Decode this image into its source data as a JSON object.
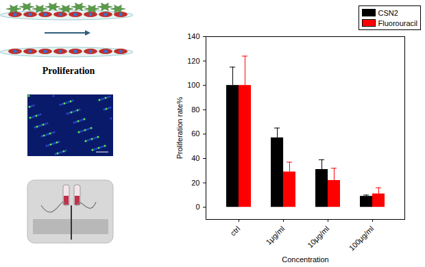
{
  "chart_data": {
    "type": "bar",
    "categories": [
      "ctrl",
      "1μg/ml",
      "10μg/ml",
      "100μg/ml"
    ],
    "series": [
      {
        "name": "CSN2",
        "color": "#000000",
        "values": [
          100,
          57,
          31,
          9
        ],
        "errors": [
          15,
          8,
          8,
          1
        ]
      },
      {
        "name": "Fluorouracil",
        "color": "#ff0000",
        "values": [
          100,
          29,
          22,
          11
        ],
        "errors": [
          24,
          8,
          10,
          5
        ]
      }
    ],
    "x_label": "Concentration",
    "y_label": "Proliferation rate%",
    "ylim": [
      -10,
      140
    ],
    "yticks": [
      0,
      20,
      40,
      60,
      80,
      100,
      120,
      140
    ],
    "legend": "top-right"
  },
  "panel": {
    "label": "Proliferation"
  }
}
